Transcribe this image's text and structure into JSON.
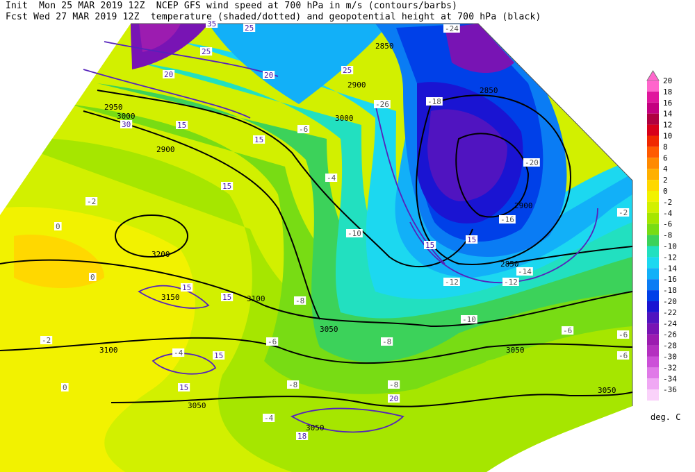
{
  "header": {
    "line1": "Init  Mon 25 MAR 2019 12Z  NCEP GFS wind speed at 700 hPa in m/s (contours/barbs)",
    "line2": "Fcst Wed 27 MAR 2019 12Z  temperature (shaded/dotted) and geopotential height at 700 hPa (black)"
  },
  "colorbar": {
    "units": "deg. C",
    "levels": [
      {
        "label": "20",
        "color": "#ff66cc"
      },
      {
        "label": "18",
        "color": "#e0179d"
      },
      {
        "label": "16",
        "color": "#c4007f"
      },
      {
        "label": "14",
        "color": "#b00040"
      },
      {
        "label": "12",
        "color": "#d8001a"
      },
      {
        "label": "10",
        "color": "#f02800"
      },
      {
        "label": "8",
        "color": "#ff5a00"
      },
      {
        "label": "6",
        "color": "#ff8a00"
      },
      {
        "label": "4",
        "color": "#ffb000"
      },
      {
        "label": "2",
        "color": "#ffd800"
      },
      {
        "label": "0",
        "color": "#f2f200"
      },
      {
        "label": "-2",
        "color": "#d2f000"
      },
      {
        "label": "-4",
        "color": "#a6e600"
      },
      {
        "label": "-6",
        "color": "#78dc14"
      },
      {
        "label": "-8",
        "color": "#3cd25a"
      },
      {
        "label": "-10",
        "color": "#22e0c0"
      },
      {
        "label": "-12",
        "color": "#1cd8f0"
      },
      {
        "label": "-14",
        "color": "#12b0f8"
      },
      {
        "label": "-16",
        "color": "#0a7cf4"
      },
      {
        "label": "-18",
        "color": "#0040e8"
      },
      {
        "label": "-20",
        "color": "#1a14d2"
      },
      {
        "label": "-22",
        "color": "#5014c0"
      },
      {
        "label": "-24",
        "color": "#7814b4"
      },
      {
        "label": "-26",
        "color": "#9c1cb0"
      },
      {
        "label": "-28",
        "color": "#b430c0"
      },
      {
        "label": "-30",
        "color": "#cc50d8"
      },
      {
        "label": "-32",
        "color": "#e07ae8"
      },
      {
        "label": "-34",
        "color": "#f0a8f4"
      },
      {
        "label": "-36",
        "color": "#fad2fa"
      }
    ]
  },
  "map_labels": {
    "heights": [
      "3200",
      "3150",
      "3100",
      "3100",
      "3050",
      "3050",
      "3050",
      "3050",
      "3000",
      "3000",
      "2950",
      "2900",
      "2900",
      "2850",
      "2850",
      "2850",
      "2900",
      "3050"
    ],
    "temps": [
      "0",
      "0",
      "0",
      "-2",
      "-2",
      "-2",
      "-4",
      "-4",
      "-6",
      "-6",
      "-6",
      "-8",
      "-8",
      "-8",
      "-10",
      "-10",
      "-12",
      "-12",
      "-14",
      "-16",
      "-18",
      "-20",
      "-24",
      "-26",
      "-4",
      "-6",
      "-8",
      "-6"
    ],
    "winds": [
      "15",
      "15",
      "15",
      "15",
      "15",
      "15",
      "15",
      "20",
      "20",
      "25",
      "25",
      "25",
      "30",
      "35",
      "15",
      "15",
      "20",
      "18"
    ]
  }
}
